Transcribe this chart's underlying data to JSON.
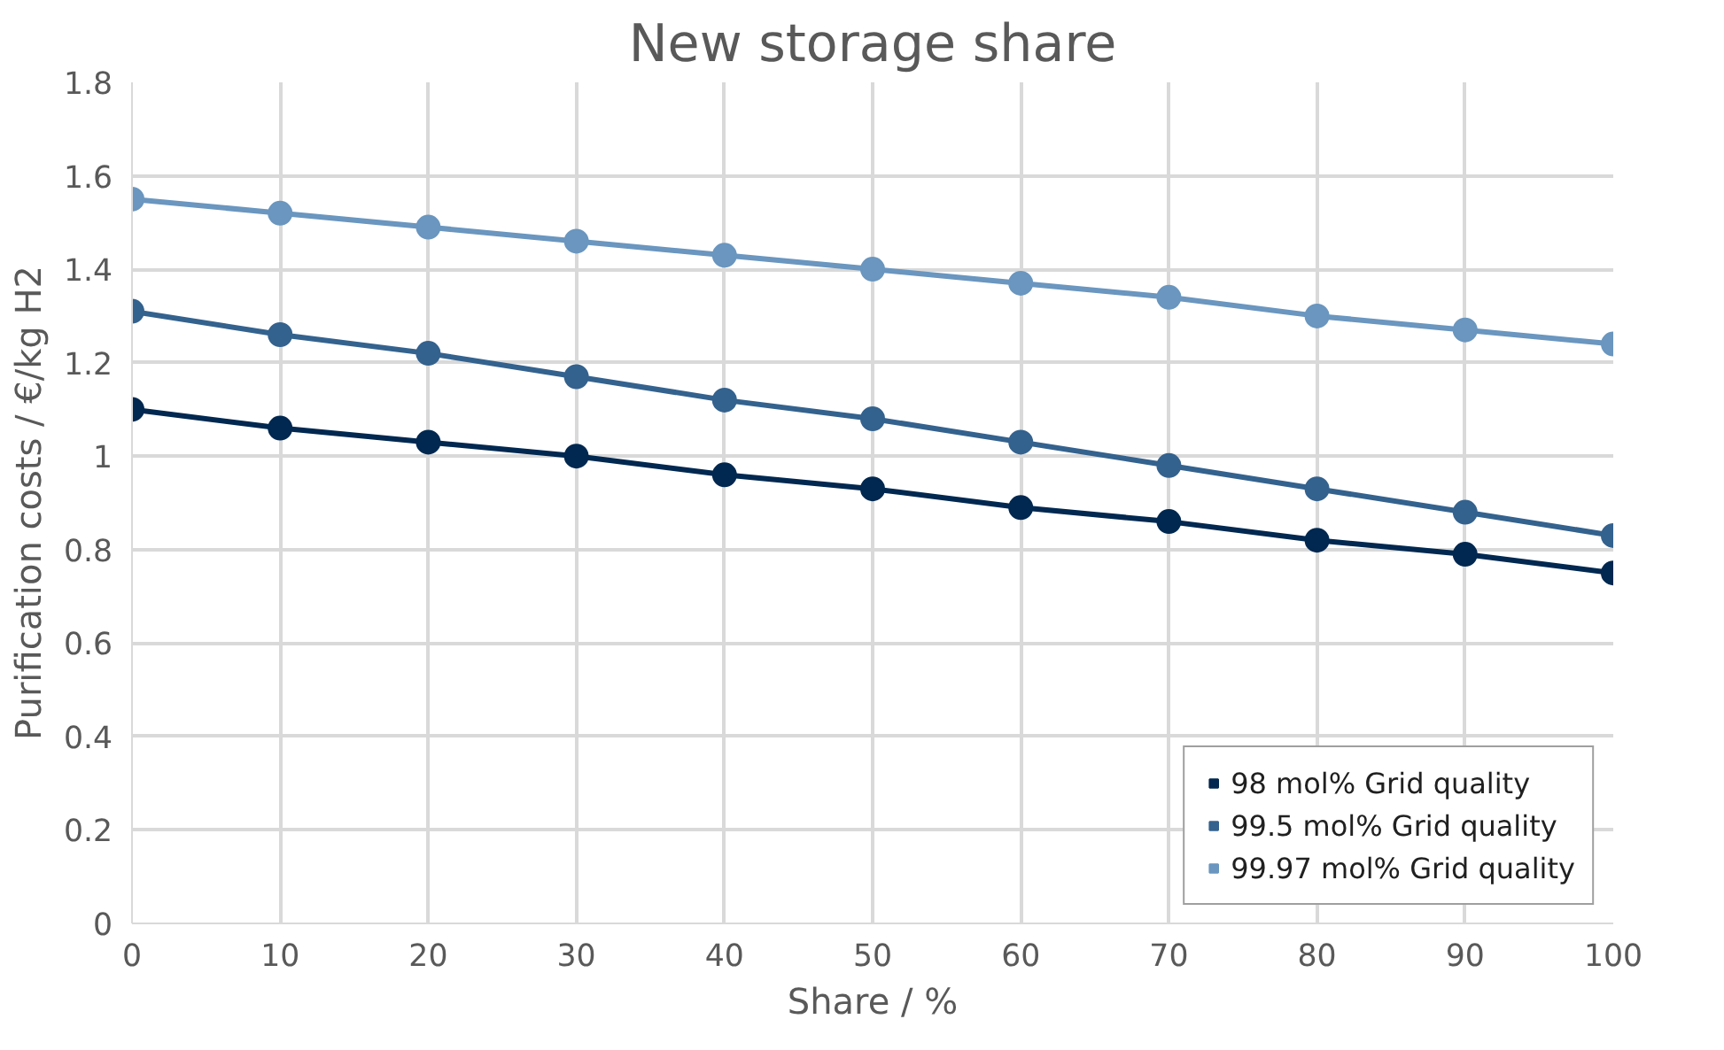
{
  "chart_data": {
    "type": "line",
    "title": "New storage share",
    "xlabel": "Share / %",
    "ylabel": "Purification costs / €/kg H2",
    "x": [
      0,
      10,
      20,
      30,
      40,
      50,
      60,
      70,
      80,
      90,
      100
    ],
    "series": [
      {
        "name": "98 mol% Grid quality",
        "color": "#002850",
        "values": [
          1.1,
          1.06,
          1.03,
          1.0,
          0.96,
          0.93,
          0.89,
          0.86,
          0.82,
          0.79,
          0.75
        ]
      },
      {
        "name": "99.5 mol% Grid quality",
        "color": "#34628e",
        "values": [
          1.31,
          1.26,
          1.22,
          1.17,
          1.12,
          1.08,
          1.03,
          0.98,
          0.93,
          0.88,
          0.83
        ]
      },
      {
        "name": "99.97 mol% Grid quality",
        "color": "#6a96bf",
        "values": [
          1.55,
          1.52,
          1.49,
          1.46,
          1.43,
          1.4,
          1.37,
          1.34,
          1.3,
          1.27,
          1.24
        ]
      }
    ],
    "xlim": [
      0,
      100
    ],
    "xticks": [
      0,
      10,
      20,
      30,
      40,
      50,
      60,
      70,
      80,
      90,
      100
    ],
    "ylim": [
      0,
      1.8
    ],
    "yticks": [
      0,
      {
        "value": 0.2,
        "label": "0.2"
      },
      {
        "value": 0.4,
        "label": "0.4"
      },
      {
        "value": 0.6,
        "label": "0.6"
      },
      {
        "value": 0.8,
        "label": "0.8"
      },
      1,
      {
        "value": 1.2,
        "label": "1.2"
      },
      {
        "value": 1.4,
        "label": "1.4"
      },
      {
        "value": 1.6,
        "label": "1.6"
      },
      {
        "value": 1.8,
        "label": "1.8"
      }
    ],
    "grid": true,
    "legend": "bottom right",
    "marker": "circle",
    "line_style": "solid"
  }
}
